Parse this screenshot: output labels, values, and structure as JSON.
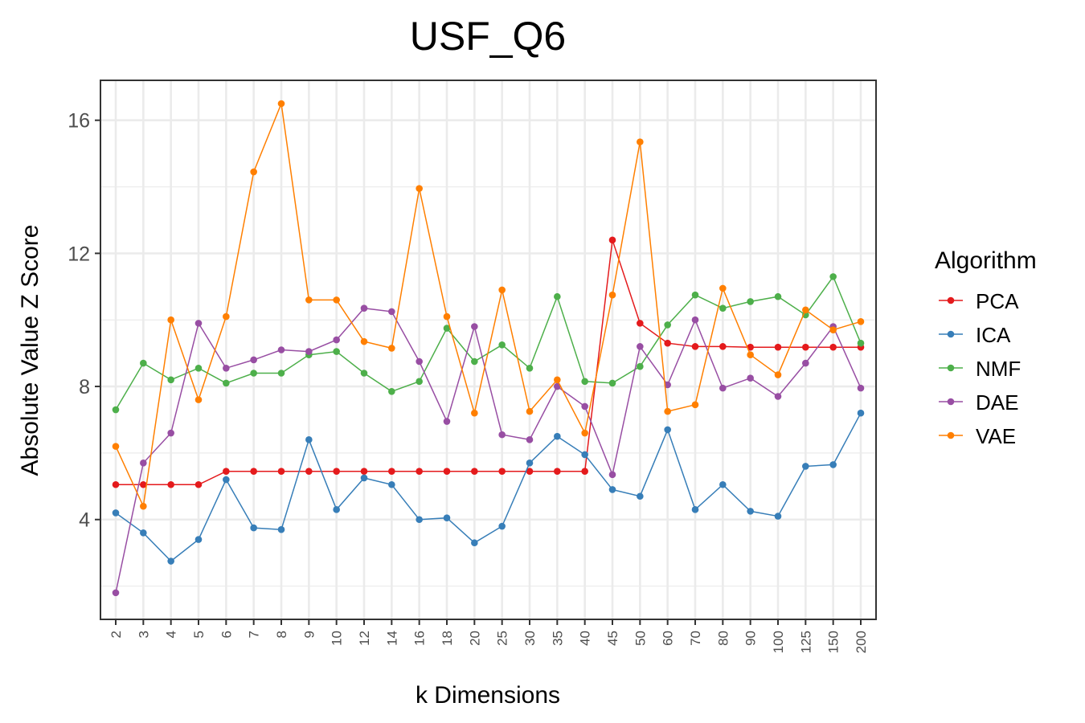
{
  "chart_data": {
    "type": "line",
    "title": "USF_Q6",
    "xlabel": "k Dimensions",
    "ylabel": "Absolute Value Z Score",
    "ylim": [
      1,
      17.2
    ],
    "yticks": [
      4,
      8,
      12,
      16
    ],
    "grid": true,
    "legend_title": "Algorithm",
    "legend_position": "right",
    "categories": [
      "2",
      "3",
      "4",
      "5",
      "6",
      "7",
      "8",
      "9",
      "10",
      "12",
      "14",
      "16",
      "18",
      "20",
      "25",
      "30",
      "35",
      "40",
      "45",
      "50",
      "60",
      "70",
      "80",
      "90",
      "100",
      "125",
      "150",
      "200"
    ],
    "series": [
      {
        "name": "PCA",
        "color": "#e41a1c",
        "values": [
          5.05,
          5.05,
          5.05,
          5.05,
          5.45,
          5.45,
          5.45,
          5.45,
          5.45,
          5.45,
          5.45,
          5.45,
          5.45,
          5.45,
          5.45,
          5.45,
          5.45,
          5.45,
          12.4,
          9.9,
          9.3,
          9.2,
          9.2,
          9.18,
          9.18,
          9.18,
          9.18,
          9.18
        ]
      },
      {
        "name": "ICA",
        "color": "#377eb8",
        "values": [
          4.2,
          3.6,
          2.75,
          3.4,
          5.2,
          3.75,
          3.7,
          6.4,
          4.3,
          5.25,
          5.05,
          4.0,
          4.05,
          3.3,
          3.8,
          5.7,
          6.5,
          5.95,
          4.9,
          4.7,
          6.7,
          4.3,
          5.05,
          4.25,
          4.1,
          5.6,
          5.65,
          7.2
        ]
      },
      {
        "name": "NMF",
        "color": "#4daf4a",
        "values": [
          7.3,
          8.7,
          8.2,
          8.55,
          8.1,
          8.4,
          8.4,
          8.95,
          9.05,
          8.4,
          7.85,
          8.15,
          9.75,
          8.75,
          9.25,
          8.55,
          10.7,
          8.15,
          8.1,
          8.6,
          9.85,
          10.75,
          10.35,
          10.55,
          10.7,
          10.15,
          11.3,
          9.3
        ]
      },
      {
        "name": "DAE",
        "color": "#984ea3",
        "values": [
          1.8,
          5.7,
          6.6,
          9.9,
          8.55,
          8.8,
          9.1,
          9.05,
          9.4,
          10.35,
          10.25,
          8.75,
          6.95,
          9.8,
          6.55,
          6.4,
          8.0,
          7.4,
          5.35,
          9.2,
          8.05,
          10.0,
          7.95,
          8.25,
          7.7,
          8.7,
          9.8,
          7.95
        ]
      },
      {
        "name": "VAE",
        "color": "#ff7f00",
        "values": [
          6.2,
          4.4,
          10.0,
          7.6,
          10.1,
          14.45,
          16.5,
          10.6,
          10.6,
          9.35,
          9.15,
          13.95,
          10.1,
          7.2,
          10.9,
          7.25,
          8.2,
          6.6,
          10.75,
          15.35,
          7.25,
          7.45,
          10.95,
          8.95,
          8.35,
          10.3,
          9.7,
          9.95
        ]
      }
    ]
  }
}
